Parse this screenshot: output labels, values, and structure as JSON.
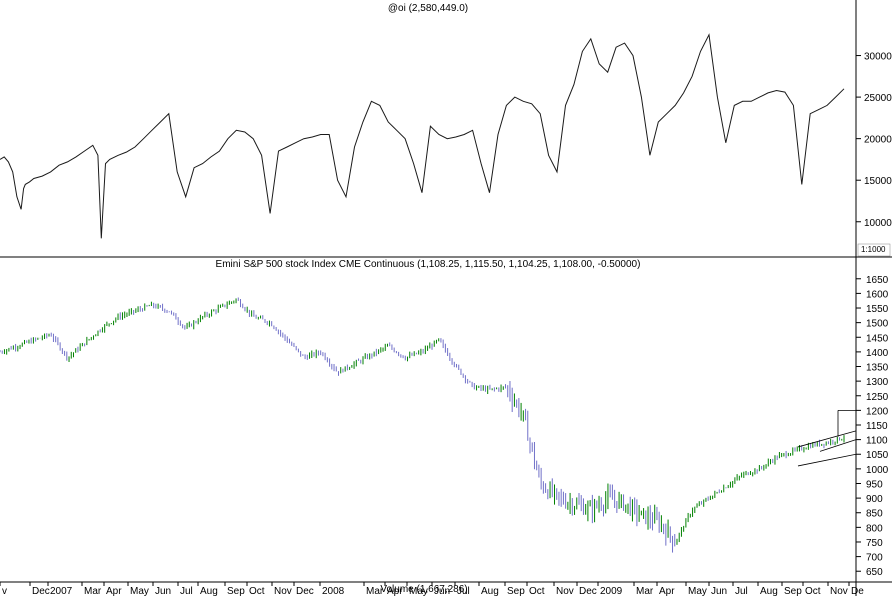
{
  "colors": {
    "background": "#ffffff",
    "oi_line": "#1a1a1a",
    "price_up": "#008000",
    "price_down": "#7070c8",
    "trendline": "#000000",
    "frame": "#000000"
  },
  "month_labels": [
    "v",
    "Dec",
    "2007",
    "Mar",
    "Apr",
    "May",
    "Jun",
    "Jul",
    "Aug",
    "Sep",
    "Oct",
    "Nov",
    "Dec",
    "2008",
    "Mar",
    "Apr",
    "May",
    "Jun",
    "Jul",
    "Aug",
    "Sep",
    "Oct",
    "Nov",
    "Dec",
    "2009",
    "Mar",
    "Apr",
    "May",
    "Jun",
    "Jul",
    "Aug",
    "Sep",
    "Oct",
    "Nov",
    "De"
  ],
  "chart_data": [
    {
      "type": "line",
      "title": "@oi (2,580,449.0)",
      "y_ticks": [
        10000,
        15000,
        20000,
        25000,
        30000
      ],
      "ylim": [
        6000,
        35000
      ],
      "scale_label": "1:1000",
      "x": [
        0,
        0.5,
        1,
        1.5,
        2,
        2.5,
        2.8,
        3,
        3.5,
        4,
        5,
        6,
        7,
        8,
        9,
        10,
        11,
        11.6,
        12,
        12.5,
        13,
        14,
        15,
        16,
        17,
        18,
        19,
        20,
        21,
        22,
        23,
        24,
        25,
        26,
        27,
        28,
        29,
        30,
        31,
        32,
        33,
        34,
        35,
        36,
        37,
        38,
        39,
        40,
        41,
        42,
        43,
        44,
        45,
        46,
        47,
        48,
        49,
        50,
        51,
        52,
        53,
        54,
        55,
        56,
        57,
        58,
        59,
        60,
        61,
        62,
        63,
        64,
        65,
        66,
        67,
        68,
        69,
        70,
        71,
        72,
        73,
        74,
        75,
        76,
        77,
        78,
        79,
        80,
        81,
        82,
        83,
        84,
        85,
        86,
        87,
        88,
        89,
        90,
        91,
        92,
        93,
        94,
        95,
        96,
        97,
        98,
        99,
        100
      ],
      "y": [
        17500,
        17800,
        17200,
        16000,
        13000,
        11500,
        14000,
        14500,
        14800,
        15200,
        15500,
        16000,
        16800,
        17200,
        17800,
        18500,
        19200,
        18000,
        8000,
        17000,
        17500,
        18000,
        18400,
        19000,
        20000,
        21000,
        22000,
        23000,
        16000,
        13000,
        16500,
        17000,
        17800,
        18500,
        20000,
        21000,
        20800,
        20000,
        18000,
        11000,
        18500,
        19000,
        19500,
        20000,
        20200,
        20500,
        20500,
        15000,
        13000,
        19000,
        22000,
        24500,
        24000,
        22000,
        21000,
        20000,
        17000,
        13500,
        21500,
        20500,
        20000,
        20200,
        20500,
        21000,
        17000,
        13500,
        20500,
        24000,
        25000,
        24500,
        24200,
        23000,
        18000,
        16000,
        24000,
        26500,
        30500,
        32000,
        29000,
        28000,
        31000,
        31500,
        30000,
        25000,
        18000,
        22000,
        23000,
        24000,
        25500,
        27500,
        30500,
        32500,
        25000,
        19500,
        24000,
        24500,
        24500,
        25000,
        25500,
        25800,
        25600,
        24000,
        14500,
        23000,
        23500,
        24000,
        25000,
        26000
      ]
    },
    {
      "type": "candlestick",
      "title": "Emini S&P 500 stock Index CME Continuous (1,108.25, 1,115.50, 1,104.25, 1,108.00, -0.50000)",
      "y_ticks": [
        650,
        700,
        750,
        800,
        850,
        900,
        950,
        1000,
        1050,
        1100,
        1150,
        1200,
        1250,
        1300,
        1350,
        1400,
        1450,
        1500,
        1550,
        1600,
        1650
      ],
      "ylim": [
        620,
        1680
      ],
      "volume_label": "Volume (1,667,286)",
      "x": [
        0,
        2,
        4,
        6,
        8,
        10,
        12,
        14,
        16,
        18,
        20,
        22,
        24,
        26,
        28,
        30,
        32,
        34,
        36,
        38,
        40,
        42,
        44,
        46,
        48,
        50,
        52,
        54,
        56,
        58,
        60,
        62,
        64,
        66,
        68,
        70,
        72,
        74,
        76,
        78,
        80,
        82,
        84,
        86,
        88,
        90,
        92,
        94,
        96,
        98,
        100
      ],
      "close": [
        1400,
        1420,
        1440,
        1460,
        1380,
        1430,
        1480,
        1520,
        1540,
        1560,
        1540,
        1480,
        1520,
        1550,
        1580,
        1520,
        1500,
        1440,
        1380,
        1400,
        1330,
        1360,
        1390,
        1420,
        1380,
        1400,
        1440,
        1350,
        1280,
        1270,
        1280,
        1180,
        950,
        900,
        880,
        860,
        900,
        880,
        840,
        820,
        750,
        860,
        900,
        940,
        980,
        1000,
        1040,
        1060,
        1080,
        1090,
        1108
      ]
    }
  ]
}
